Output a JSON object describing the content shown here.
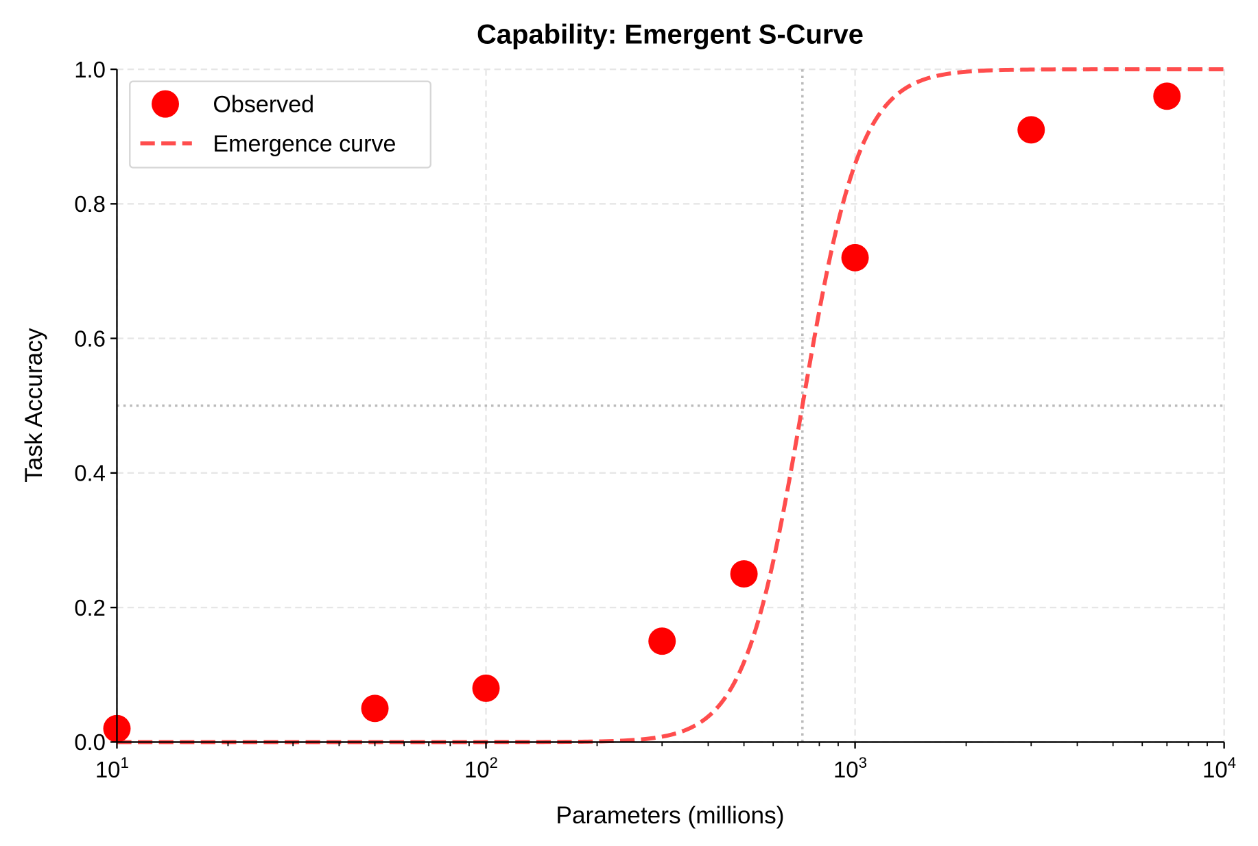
{
  "chart_data": {
    "type": "scatter",
    "title": "Capability: Emergent S-Curve",
    "xlabel": "Parameters (millions)",
    "ylabel": "Task Accuracy",
    "xscale": "log",
    "xlim": [
      10,
      10000
    ],
    "ylim": [
      0,
      1.0
    ],
    "xticks": [
      {
        "value": 10,
        "base": "10",
        "exp": "1"
      },
      {
        "value": 100,
        "base": "10",
        "exp": "2"
      },
      {
        "value": 1000,
        "base": "10",
        "exp": "3"
      },
      {
        "value": 10000,
        "base": "10",
        "exp": "4"
      }
    ],
    "yticks": [
      {
        "value": 0.0,
        "label": "0.0"
      },
      {
        "value": 0.2,
        "label": "0.2"
      },
      {
        "value": 0.4,
        "label": "0.4"
      },
      {
        "value": 0.6,
        "label": "0.6"
      },
      {
        "value": 0.8,
        "label": "0.8"
      },
      {
        "value": 1.0,
        "label": "1.0"
      }
    ],
    "grid": true,
    "legend_position": "top-left",
    "series": [
      {
        "name": "Observed",
        "kind": "scatter",
        "color": "#ff0000",
        "x": [
          10,
          50,
          100,
          300,
          500,
          1000,
          3000,
          7000
        ],
        "y": [
          0.02,
          0.05,
          0.08,
          0.15,
          0.25,
          0.72,
          0.91,
          0.96
        ]
      },
      {
        "name": "Emergence curve",
        "kind": "line",
        "style": "dashed",
        "color": "#ff4d4d",
        "function": "logistic",
        "midpoint": 720,
        "steepness_per_decade": 5.5
      }
    ],
    "reference_lines": [
      {
        "axis": "y",
        "value": 0.5,
        "style": "dotted",
        "color": "#bbbbbb"
      },
      {
        "axis": "x",
        "value": 720,
        "style": "dotted",
        "color": "#bbbbbb"
      }
    ]
  }
}
